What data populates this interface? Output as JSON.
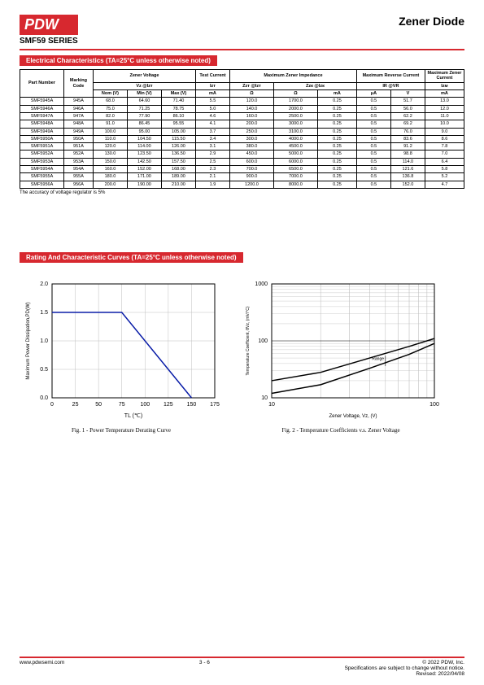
{
  "header": {
    "logo": "PDW",
    "series": "SMF59 SERIES",
    "title": "Zener Diode"
  },
  "section1": {
    "label": "Electrical Characteristics (TA=25°C unless otherwise noted)",
    "columns": {
      "part": "Part Number",
      "mark": "Marking Code",
      "zv": "Zener Voltage",
      "zv_sub": "Vz @Izт",
      "nom": "Nom (V)",
      "min": "Min (V)",
      "max": "Max (V)",
      "test": "Test Current",
      "izt": "Izт",
      "ma": "mA",
      "mzi": "Maximum Zener Impedance",
      "zzt": "Zzт @Izт",
      "zzk": "Zzк @Izк",
      "ohm": "Ω",
      "mrc": "Maximum Reverse Current",
      "ir": "IR @VR",
      "ua": "μA",
      "v": "V",
      "mzc": "Maximum Zener Current",
      "izm": "Izм"
    },
    "rows": [
      [
        "SMF5945A",
        "945A",
        "68.0",
        "64.60",
        "71.40",
        "5.5",
        "120.0",
        "1700.0",
        "0.25",
        "0.5",
        "51.7",
        "13.0"
      ],
      [
        "SMF5946A",
        "946A",
        "75.0",
        "71.25",
        "78.75",
        "5.0",
        "140.0",
        "2000.0",
        "0.25",
        "0.5",
        "56.0",
        "12.0"
      ],
      [
        "SMF5947A",
        "947A",
        "82.0",
        "77.90",
        "86.10",
        "4.6",
        "160.0",
        "2500.0",
        "0.25",
        "0.5",
        "62.2",
        "11.0"
      ],
      [
        "SMF5948A",
        "948A",
        "91.0",
        "86.45",
        "95.55",
        "4.1",
        "200.0",
        "3000.0",
        "0.25",
        "0.5",
        "69.2",
        "10.0"
      ],
      [
        "SMF5949A",
        "949A",
        "100.0",
        "95.00",
        "105.00",
        "3.7",
        "250.0",
        "3100.0",
        "0.25",
        "0.5",
        "76.0",
        "9.0"
      ],
      [
        "SMF5950A",
        "950A",
        "110.0",
        "104.50",
        "115.50",
        "3.4",
        "300.0",
        "4000.0",
        "0.25",
        "0.5",
        "83.6",
        "8.6"
      ],
      [
        "SMF5951A",
        "951A",
        "120.0",
        "114.00",
        "126.00",
        "3.1",
        "380.0",
        "4500.0",
        "0.25",
        "0.5",
        "91.2",
        "7.8"
      ],
      [
        "SMF5952A",
        "952A",
        "130.0",
        "123.50",
        "136.50",
        "2.9",
        "450.0",
        "5000.0",
        "0.25",
        "0.5",
        "98.8",
        "7.0"
      ],
      [
        "SMF5953A",
        "953A",
        "150.0",
        "142.50",
        "157.50",
        "2.5",
        "600.0",
        "6000.0",
        "0.25",
        "0.5",
        "114.0",
        "6.4"
      ],
      [
        "SMF5954A",
        "954A",
        "160.0",
        "152.00",
        "168.00",
        "2.3",
        "700.0",
        "6500.0",
        "0.25",
        "0.5",
        "121.6",
        "5.8"
      ],
      [
        "SMF5955A",
        "955A",
        "180.0",
        "171.00",
        "189.00",
        "2.1",
        "900.0",
        "7000.0",
        "0.25",
        "0.5",
        "136.8",
        "5.2"
      ],
      [
        "SMF5956A",
        "956A",
        "200.0",
        "190.00",
        "210.00",
        "1.9",
        "1200.0",
        "8000.0",
        "0.25",
        "0.5",
        "152.0",
        "4.7"
      ]
    ],
    "note": "The accuracy of voltage regulator is 5%"
  },
  "section2": {
    "label": "Rating And Characteristic Curves (TA=25°C unless otherwise noted)",
    "fig1": {
      "caption": "Fig. 1 - Power Temperature Derating Curve",
      "xlabel": "TL (℃)",
      "ylabel": "Maximum Power Dissipation,PD(W)",
      "xlim": [
        0,
        175
      ],
      "xtick": 25,
      "ylim": [
        0,
        2.0
      ],
      "ytick": 0.5,
      "color": "#0b1ea8",
      "grid_color": "#bfbfbf",
      "points": [
        [
          0,
          1.5
        ],
        [
          75,
          1.5
        ],
        [
          150,
          0
        ]
      ]
    },
    "fig2": {
      "caption": "Fig. 2 - Temperature Coefficients v.s. Zener Voltage",
      "xlabel": "Zener Voltage, Vz, (V)",
      "ylabel": "Temperature Coefficient, θVz, (mV/°C)",
      "xlim_log": [
        10,
        100
      ],
      "ylim_log": [
        10,
        1000
      ],
      "curve_hi": [
        [
          10,
          20
        ],
        [
          20,
          28
        ],
        [
          40,
          50
        ],
        [
          70,
          80
        ],
        [
          100,
          110
        ]
      ],
      "curve_lo": [
        [
          10,
          12
        ],
        [
          20,
          17
        ],
        [
          40,
          33
        ],
        [
          70,
          58
        ],
        [
          100,
          90
        ]
      ],
      "range_label": "Range",
      "grid_color": "#bfbfbf",
      "color": "#000"
    }
  },
  "footer": {
    "url": "www.pdwsemi.com",
    "page": "3 - 6",
    "copyright": "© 2022 PDW, Inc.",
    "line2": "Specifications are subject to change without notice.",
    "line3": "Revised: 2022/04/08"
  }
}
